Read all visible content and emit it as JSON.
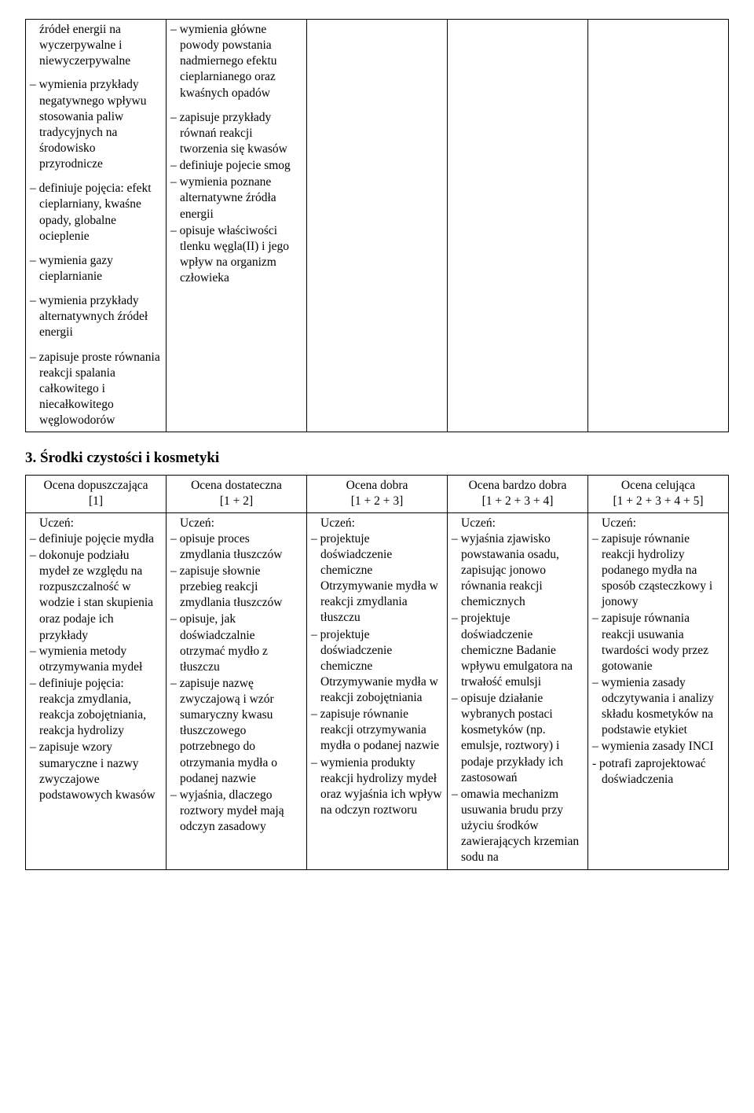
{
  "table1": {
    "rows": [
      {
        "c0": "źródeł energii na wyczerpywalne i niewyczerpywalne\n\n– wymienia przykłady negatywnego wpływu stosowania paliw tradycyjnych na środowisko przyrodnicze\n\n– definiuje pojęcia: efekt cieplarniany, kwaśne opady, globalne ocieplenie\n\n– wymienia gazy cieplarnianie\n\n– wymienia przykłady alternatywnych źródeł energii\n\n– zapisuje proste równania reakcji spalania całkowitego i niecałkowitego węglowodorów",
        "c1": "– wymienia główne powody powstania nadmiernego efektu cieplarnianego oraz kwaśnych opadów\n\n– zapisuje przykłady równań reakcji tworzenia się kwasów\n– definiuje pojecie smog\n– wymienia poznane alternatywne źródła energii\n– opisuje właściwości tlenku węgla(II) i jego wpływ na organizm człowieka",
        "c2": "",
        "c3": "",
        "c4": ""
      }
    ]
  },
  "heading": "3. Środki czystości i kosmetyki",
  "table2": {
    "headers": [
      "Ocena dopuszczająca\n[1]",
      "Ocena dostateczna\n[1 + 2]",
      "Ocena dobra\n[1 + 2 + 3]",
      "Ocena bardzo dobra\n[1 + 2 + 3 + 4]",
      "Ocena celująca\n[1 + 2 + 3 + 4 + 5]"
    ],
    "rows": [
      {
        "c0": "Uczeń:\n– definiuje pojęcie mydła\n– dokonuje podziału mydeł ze względu na rozpuszczalność w wodzie i stan skupienia\noraz podaje ich przykłady\n– wymienia metody otrzymywania mydeł\n– definiuje pojęcia: reakcja zmydlania, reakcja zobojętniania, reakcja hydrolizy\n– zapisuje wzory sumaryczne i nazwy zwyczajowe podstawowych kwasów",
        "c1": "Uczeń:\n– opisuje proces zmydlania tłuszczów\n– zapisuje słownie przebieg reakcji zmydlania tłuszczów\n– opisuje, jak doświadczalnie otrzymać mydło z tłuszczu\n– zapisuje nazwę zwyczajową i wzór sumaryczny kwasu tłuszczowego potrzebnego do otrzymania mydła o podanej nazwie\n– wyjaśnia, dlaczego roztwory mydeł mają odczyn zasadowy",
        "c2": "Uczeń:\n– projektuje doświadczenie chemiczne Otrzymywanie mydła w reakcji zmydlania tłuszczu\n– projektuje doświadczenie chemiczne Otrzymywanie mydła w reakcji zobojętniania\n– zapisuje równanie reakcji otrzymywania mydła o podanej nazwie\n– wymienia produkty reakcji hydrolizy mydeł oraz wyjaśnia ich wpływ na odczyn roztworu",
        "c3": "Uczeń:\n– wyjaśnia zjawisko powstawania osadu, zapisując jonowo równania reakcji chemicznych\n– projektuje doświadczenie chemiczne Badanie wpływu emulgatora na trwałość emulsji\n– opisuje działanie wybranych postaci kosmetyków (np. emulsje, roztwory) i podaje przykłady ich zastosowań\n– omawia mechanizm usuwania brudu przy użyciu środków zawierających krzemian sodu na",
        "c4": "Uczeń:\n– zapisuje równanie reakcji hydrolizy podanego mydła na sposób cząsteczkowy i jonowy\n– zapisuje równania reakcji usuwania twardości wody przez gotowanie\n– wymienia zasady odczytywania i analizy składu kosmetyków na podstawie etykiet\n– wymienia zasady INCI\n- potrafi zaprojektować doświadczenia"
      }
    ]
  }
}
